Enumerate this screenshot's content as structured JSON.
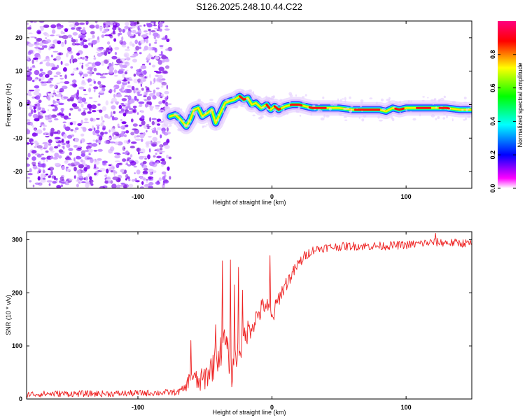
{
  "title": "S126.2025.248.10.44.C22",
  "chart_data": [
    {
      "type": "heatmap",
      "title": "S126.2025.248.10.44.C22",
      "xlabel": "Height of straight line (km)",
      "ylabel": "Frequency (Hz)",
      "xlim": [
        -183,
        149
      ],
      "ylim": [
        -25,
        25
      ],
      "x_ticks": [
        -100,
        0,
        100
      ],
      "y_ticks": [
        -20,
        -10,
        0,
        10,
        20
      ],
      "x_tick_labels": [
        "-100",
        "0",
        "100"
      ],
      "y_tick_labels": [
        "-20",
        "-10",
        "0",
        "10",
        "20"
      ],
      "noise_region_x": [
        -183,
        -76
      ],
      "ridge": {
        "x": [
          -76,
          -72,
          -68,
          -64,
          -61,
          -58,
          -55,
          -52,
          -48,
          -45,
          -42,
          -38,
          -35,
          -32,
          -28,
          -24,
          -21,
          -18,
          -15,
          -12,
          -8,
          -4,
          -1,
          2,
          5,
          10,
          15,
          20,
          30,
          40,
          50,
          60,
          70,
          80,
          85,
          90,
          95,
          100,
          110,
          120,
          130,
          140,
          149
        ],
        "freq": [
          -3.5,
          -3.0,
          -4.5,
          -6.5,
          -4.5,
          -1.5,
          -1.0,
          -3.5,
          -2.5,
          -1.5,
          -5.5,
          -2.0,
          0.5,
          1.0,
          1.5,
          2.5,
          1.5,
          2.0,
          0.0,
          0.5,
          -1.0,
          0.0,
          -1.5,
          -0.5,
          -1.5,
          -0.5,
          0.0,
          0.0,
          -1.0,
          -1.0,
          -1.0,
          -1.5,
          -1.5,
          -1.5,
          -2.0,
          -1.0,
          -1.5,
          -1.0,
          -1.0,
          -1.0,
          -1.0,
          -1.5,
          -1.5
        ]
      },
      "colorbar": {
        "label": "Normalized spectral amplitude",
        "range": [
          0.0,
          1.0
        ],
        "ticks": [
          0.0,
          0.2,
          0.4,
          0.6,
          0.8
        ],
        "tick_labels": [
          "0.0",
          "0.2",
          "0.4",
          "0.6",
          "0.8"
        ],
        "colors": [
          "#ffffff",
          "#ff00ff",
          "#0000ff",
          "#00ffff",
          "#00ff00",
          "#ffff00",
          "#ff0000",
          "#ff0080"
        ]
      }
    },
    {
      "type": "line",
      "xlabel": "Height of straight line (km)",
      "ylabel": "SNR (10 * v/v)",
      "xlim": [
        -183,
        149
      ],
      "ylim": [
        0,
        315
      ],
      "x_ticks": [
        -100,
        0,
        100
      ],
      "y_ticks": [
        0,
        100,
        200,
        300
      ],
      "x_tick_labels": [
        "-100",
        "0",
        "100"
      ],
      "y_tick_labels": [
        "0",
        "100",
        "200",
        "300"
      ],
      "series": [
        {
          "name": "SNR",
          "color": "#ee2222",
          "x": [
            -183,
            -160,
            -140,
            -120,
            -100,
            -80,
            -70,
            -65,
            -60,
            -55,
            -50,
            -45,
            -40,
            -35,
            -30,
            -25,
            -20,
            -15,
            -10,
            -5,
            0,
            5,
            10,
            15,
            20,
            25,
            30,
            35,
            40,
            50,
            60,
            80,
            100,
            120,
            149
          ],
          "y": [
            9,
            10,
            10,
            10,
            11,
            12,
            13,
            20,
            45,
            30,
            40,
            60,
            80,
            110,
            50,
            90,
            120,
            140,
            160,
            180,
            150,
            190,
            215,
            235,
            255,
            270,
            280,
            283,
            285,
            287,
            288,
            288,
            290,
            295,
            293
          ],
          "noise": [
            6,
            6,
            6,
            6,
            6,
            6,
            6,
            8,
            20,
            20,
            25,
            30,
            30,
            30,
            30,
            30,
            25,
            22,
            20,
            20,
            20,
            15,
            15,
            12,
            12,
            10,
            8,
            8,
            8,
            8,
            8,
            8,
            8,
            8,
            8
          ],
          "spikes": [
            {
              "x": -60.5,
              "y": 110
            },
            {
              "x": -42,
              "y": 140
            },
            {
              "x": -37,
              "y": 260
            },
            {
              "x": -31,
              "y": 262
            },
            {
              "x": -28,
              "y": 215
            },
            {
              "x": -25,
              "y": 248
            },
            {
              "x": -22,
              "y": 205
            },
            {
              "x": -1.5,
              "y": 270
            },
            {
              "x": 122,
              "y": 312
            }
          ]
        }
      ]
    }
  ]
}
